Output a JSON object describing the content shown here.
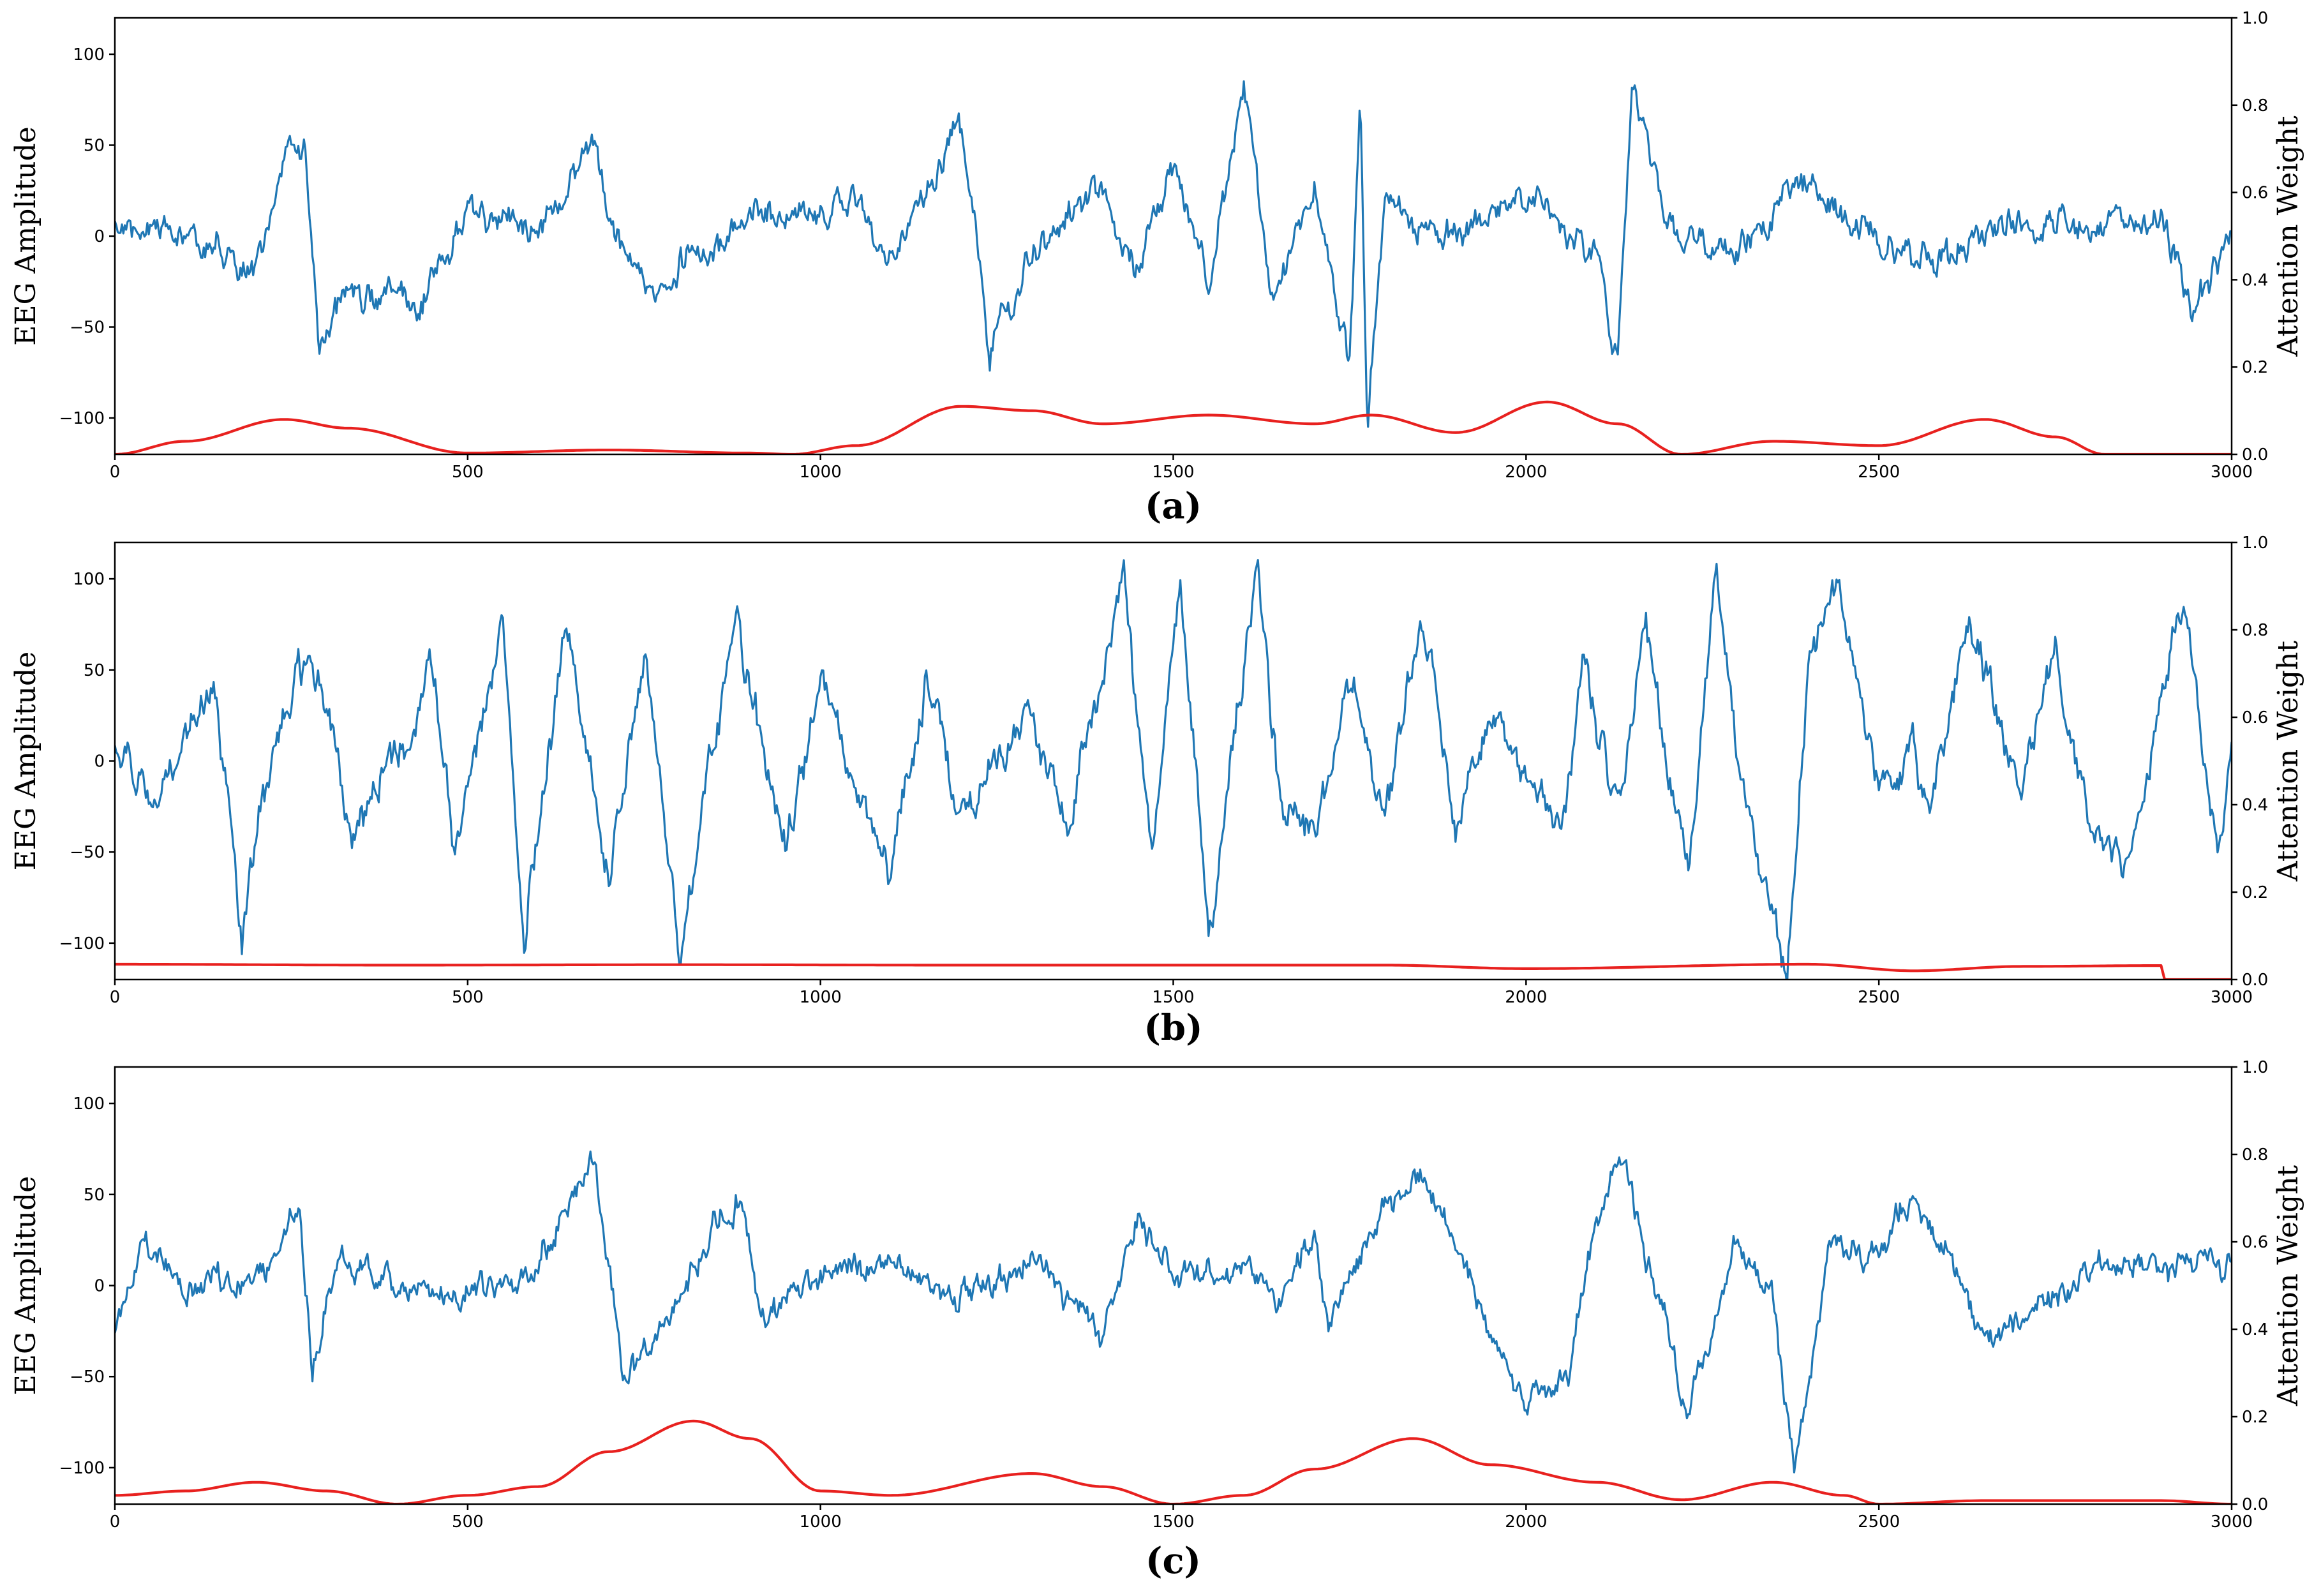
{
  "figure": {
    "panel_labels": [
      "(a)",
      "(b)",
      "(c)"
    ]
  },
  "colors": {
    "eeg": "#1f77b4",
    "attention": "#e8211f"
  },
  "chart_data": [
    {
      "type": "line",
      "panel": "(a)",
      "xlabel": "",
      "ylabel": "EEG Amplitude",
      "y2label": "Attention Weight",
      "xlim": [
        0,
        3000
      ],
      "ylim": [
        -120,
        120
      ],
      "y2lim": [
        0,
        1
      ],
      "xticks": [
        "0",
        "500",
        "1000",
        "1500",
        "2000",
        "2500",
        "3000"
      ],
      "yticks": [
        "−100",
        "−50",
        "0",
        "50",
        "100"
      ],
      "y2ticks": [
        "0.0",
        "0.2",
        "0.4",
        "0.6",
        "0.8",
        "1.0"
      ],
      "eeg_keypoints": [
        [
          0,
          8
        ],
        [
          120,
          0
        ],
        [
          200,
          -15
        ],
        [
          230,
          30
        ],
        [
          250,
          55
        ],
        [
          270,
          45
        ],
        [
          290,
          -68
        ],
        [
          320,
          -40
        ],
        [
          400,
          -30
        ],
        [
          430,
          -45
        ],
        [
          500,
          10
        ],
        [
          600,
          5
        ],
        [
          680,
          45
        ],
        [
          700,
          10
        ],
        [
          760,
          -30
        ],
        [
          800,
          -15
        ],
        [
          900,
          10
        ],
        [
          1000,
          15
        ],
        [
          1050,
          20
        ],
        [
          1100,
          -15
        ],
        [
          1200,
          60
        ],
        [
          1240,
          -64
        ],
        [
          1300,
          -10
        ],
        [
          1400,
          30
        ],
        [
          1450,
          -20
        ],
        [
          1500,
          40
        ],
        [
          1550,
          -30
        ],
        [
          1600,
          82
        ],
        [
          1640,
          -40
        ],
        [
          1700,
          20
        ],
        [
          1750,
          -75
        ],
        [
          1765,
          78
        ],
        [
          1775,
          -100
        ],
        [
          1800,
          20
        ],
        [
          1900,
          0
        ],
        [
          2000,
          20
        ],
        [
          2100,
          -10
        ],
        [
          2130,
          -70
        ],
        [
          2150,
          84
        ],
        [
          2200,
          0
        ],
        [
          2300,
          -5
        ],
        [
          2400,
          30
        ],
        [
          2500,
          0
        ],
        [
          2600,
          -10
        ],
        [
          2700,
          10
        ],
        [
          2800,
          0
        ],
        [
          2900,
          10
        ],
        [
          2950,
          -40
        ],
        [
          3000,
          0
        ]
      ],
      "eeg_noise": 12,
      "eeg_seed": 17,
      "attention_points": [
        [
          0,
          0.0
        ],
        [
          100,
          0.03
        ],
        [
          240,
          0.08
        ],
        [
          330,
          0.06
        ],
        [
          500,
          0.003
        ],
        [
          700,
          0.01
        ],
        [
          900,
          0.003
        ],
        [
          960,
          0.0
        ],
        [
          1050,
          0.02
        ],
        [
          1200,
          0.11
        ],
        [
          1300,
          0.1
        ],
        [
          1400,
          0.07
        ],
        [
          1550,
          0.09
        ],
        [
          1700,
          0.07
        ],
        [
          1780,
          0.09
        ],
        [
          1900,
          0.05
        ],
        [
          2030,
          0.12
        ],
        [
          2130,
          0.07
        ],
        [
          2220,
          0.0
        ],
        [
          2350,
          0.03
        ],
        [
          2500,
          0.02
        ],
        [
          2650,
          0.08
        ],
        [
          2750,
          0.04
        ],
        [
          2820,
          0.0
        ],
        [
          3000,
          0.0
        ]
      ]
    },
    {
      "type": "line",
      "panel": "(b)",
      "xlabel": "",
      "ylabel": "EEG Amplitude",
      "y2label": "Attention Weight",
      "xlim": [
        0,
        3000
      ],
      "ylim": [
        -120,
        120
      ],
      "y2lim": [
        0,
        1
      ],
      "xticks": [
        "0",
        "500",
        "1000",
        "1500",
        "2000",
        "2500",
        "3000"
      ],
      "yticks": [
        "−100",
        "−50",
        "0",
        "50",
        "100"
      ],
      "y2ticks": [
        "0.0",
        "0.2",
        "0.4",
        "0.6",
        "0.8",
        "1.0"
      ],
      "eeg_keypoints": [
        [
          0,
          15
        ],
        [
          60,
          -20
        ],
        [
          100,
          10
        ],
        [
          140,
          45
        ],
        [
          170,
          -60
        ],
        [
          180,
          -110
        ],
        [
          200,
          -40
        ],
        [
          260,
          60
        ],
        [
          300,
          30
        ],
        [
          340,
          -40
        ],
        [
          400,
          0
        ],
        [
          450,
          55
        ],
        [
          480,
          -50
        ],
        [
          550,
          78
        ],
        [
          580,
          -95
        ],
        [
          640,
          75
        ],
        [
          700,
          -70
        ],
        [
          750,
          60
        ],
        [
          800,
          -105
        ],
        [
          860,
          30
        ],
        [
          880,
          78
        ],
        [
          950,
          -50
        ],
        [
          1000,
          40
        ],
        [
          1050,
          -20
        ],
        [
          1100,
          -60
        ],
        [
          1150,
          50
        ],
        [
          1200,
          -30
        ],
        [
          1300,
          30
        ],
        [
          1350,
          -40
        ],
        [
          1430,
          100
        ],
        [
          1470,
          -50
        ],
        [
          1510,
          95
        ],
        [
          1550,
          -100
        ],
        [
          1620,
          115
        ],
        [
          1650,
          -20
        ],
        [
          1700,
          -40
        ],
        [
          1750,
          50
        ],
        [
          1800,
          -30
        ],
        [
          1850,
          77
        ],
        [
          1900,
          -40
        ],
        [
          1950,
          30
        ],
        [
          2000,
          -10
        ],
        [
          2050,
          -40
        ],
        [
          2080,
          55
        ],
        [
          2130,
          -25
        ],
        [
          2170,
          70
        ],
        [
          2230,
          -70
        ],
        [
          2270,
          100
        ],
        [
          2310,
          -20
        ],
        [
          2370,
          -120
        ],
        [
          2400,
          50
        ],
        [
          2440,
          100
        ],
        [
          2500,
          -20
        ],
        [
          2550,
          10
        ],
        [
          2570,
          -30
        ],
        [
          2630,
          80
        ],
        [
          2700,
          -20
        ],
        [
          2750,
          60
        ],
        [
          2800,
          -30
        ],
        [
          2850,
          -60
        ],
        [
          2900,
          30
        ],
        [
          2930,
          85
        ],
        [
          2980,
          -50
        ],
        [
          3000,
          10
        ]
      ],
      "eeg_noise": 14,
      "eeg_seed": 29,
      "attention_points": [
        [
          0,
          0.035
        ],
        [
          400,
          0.033
        ],
        [
          800,
          0.034
        ],
        [
          1200,
          0.033
        ],
        [
          1800,
          0.033
        ],
        [
          2000,
          0.025
        ],
        [
          2400,
          0.035
        ],
        [
          2550,
          0.02
        ],
        [
          2700,
          0.03
        ],
        [
          2900,
          0.032
        ],
        [
          2901,
          0.0
        ],
        [
          3000,
          0.0
        ]
      ]
    },
    {
      "type": "line",
      "panel": "(c)",
      "xlabel": "",
      "ylabel": "EEG Amplitude",
      "y2label": "Attention Weight",
      "xlim": [
        0,
        3000
      ],
      "ylim": [
        -120,
        120
      ],
      "y2lim": [
        0,
        1
      ],
      "xticks": [
        "0",
        "500",
        "1000",
        "1500",
        "2000",
        "2500",
        "3000"
      ],
      "yticks": [
        "−100",
        "−50",
        "0",
        "50",
        "100"
      ],
      "y2ticks": [
        "0.0",
        "0.2",
        "0.4",
        "0.6",
        "0.8",
        "1.0"
      ],
      "eeg_keypoints": [
        [
          0,
          -30
        ],
        [
          40,
          30
        ],
        [
          100,
          -5
        ],
        [
          150,
          5
        ],
        [
          200,
          0
        ],
        [
          260,
          40
        ],
        [
          280,
          -40
        ],
        [
          320,
          15
        ],
        [
          400,
          -5
        ],
        [
          500,
          -5
        ],
        [
          600,
          10
        ],
        [
          680,
          70
        ],
        [
          720,
          -55
        ],
        [
          800,
          -10
        ],
        [
          850,
          35
        ],
        [
          880,
          50
        ],
        [
          920,
          -20
        ],
        [
          1000,
          5
        ],
        [
          1100,
          15
        ],
        [
          1200,
          -10
        ],
        [
          1300,
          20
        ],
        [
          1400,
          -30
        ],
        [
          1450,
          40
        ],
        [
          1500,
          5
        ],
        [
          1600,
          10
        ],
        [
          1650,
          -10
        ],
        [
          1700,
          30
        ],
        [
          1720,
          -20
        ],
        [
          1800,
          45
        ],
        [
          1850,
          60
        ],
        [
          1900,
          20
        ],
        [
          1960,
          -30
        ],
        [
          2000,
          -60
        ],
        [
          2060,
          -50
        ],
        [
          2100,
          40
        ],
        [
          2130,
          70
        ],
        [
          2200,
          -20
        ],
        [
          2230,
          -70
        ],
        [
          2300,
          30
        ],
        [
          2350,
          -10
        ],
        [
          2380,
          -100
        ],
        [
          2430,
          20
        ],
        [
          2500,
          20
        ],
        [
          2530,
          45
        ],
        [
          2600,
          20
        ],
        [
          2650,
          -30
        ],
        [
          2800,
          10
        ],
        [
          2900,
          10
        ],
        [
          3000,
          10
        ]
      ],
      "eeg_noise": 11,
      "eeg_seed": 41,
      "attention_points": [
        [
          0,
          0.02
        ],
        [
          100,
          0.03
        ],
        [
          200,
          0.05
        ],
        [
          300,
          0.03
        ],
        [
          400,
          0.0
        ],
        [
          500,
          0.02
        ],
        [
          600,
          0.04
        ],
        [
          700,
          0.12
        ],
        [
          820,
          0.19
        ],
        [
          900,
          0.15
        ],
        [
          1000,
          0.03
        ],
        [
          1100,
          0.02
        ],
        [
          1300,
          0.07
        ],
        [
          1400,
          0.04
        ],
        [
          1500,
          0.0
        ],
        [
          1600,
          0.02
        ],
        [
          1700,
          0.08
        ],
        [
          1840,
          0.15
        ],
        [
          1950,
          0.09
        ],
        [
          2100,
          0.05
        ],
        [
          2220,
          0.01
        ],
        [
          2350,
          0.05
        ],
        [
          2450,
          0.02
        ],
        [
          2500,
          0.0
        ],
        [
          2650,
          0.008
        ],
        [
          2900,
          0.008
        ],
        [
          3000,
          0.0
        ]
      ]
    }
  ]
}
